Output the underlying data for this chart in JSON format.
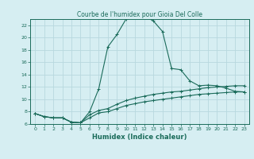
{
  "title": "Courbe de l'humidex pour Gioia Del Colle",
  "xlabel": "Humidex (Indice chaleur)",
  "background_color": "#d6eef2",
  "grid_color": "#b8d8de",
  "line_color": "#1a6b5a",
  "xlim": [
    -0.5,
    23.5
  ],
  "ylim": [
    6,
    23
  ],
  "yticks": [
    6,
    8,
    10,
    12,
    14,
    16,
    18,
    20,
    22
  ],
  "xticks": [
    0,
    1,
    2,
    3,
    4,
    5,
    6,
    7,
    8,
    9,
    10,
    11,
    12,
    13,
    14,
    15,
    16,
    17,
    18,
    19,
    20,
    21,
    22,
    23
  ],
  "curve1_x": [
    0,
    1,
    2,
    3,
    4,
    5,
    6,
    7,
    8,
    9,
    10,
    11,
    12,
    13,
    14,
    15,
    16,
    17,
    18,
    19,
    20,
    21,
    22,
    23
  ],
  "curve1_y": [
    7.7,
    7.2,
    7.0,
    7.0,
    6.3,
    6.2,
    8.0,
    11.7,
    18.5,
    20.5,
    23.0,
    23.2,
    23.5,
    22.7,
    21.0,
    15.0,
    14.8,
    13.0,
    12.2,
    12.3,
    12.2,
    11.8,
    11.3,
    11.2
  ],
  "curve2_x": [
    0,
    1,
    2,
    3,
    4,
    5,
    6,
    7,
    8,
    9,
    10,
    11,
    12,
    13,
    14,
    15,
    16,
    17,
    18,
    19,
    20,
    21,
    22,
    23
  ],
  "curve2_y": [
    7.7,
    7.2,
    7.0,
    7.0,
    6.3,
    6.2,
    7.5,
    8.2,
    8.5,
    9.2,
    9.8,
    10.2,
    10.5,
    10.8,
    11.0,
    11.2,
    11.3,
    11.5,
    11.7,
    11.9,
    12.0,
    12.1,
    12.2,
    12.2
  ],
  "curve3_x": [
    0,
    1,
    2,
    3,
    4,
    5,
    6,
    7,
    8,
    9,
    10,
    11,
    12,
    13,
    14,
    15,
    16,
    17,
    18,
    19,
    20,
    21,
    22,
    23
  ],
  "curve3_y": [
    7.7,
    7.2,
    7.0,
    7.0,
    6.3,
    6.2,
    7.0,
    7.8,
    8.0,
    8.5,
    9.0,
    9.3,
    9.6,
    9.8,
    10.0,
    10.2,
    10.4,
    10.6,
    10.8,
    10.9,
    11.0,
    11.1,
    11.2,
    11.2
  ],
  "title_fontsize": 5.5,
  "xlabel_fontsize": 6,
  "tick_fontsize": 4.5
}
